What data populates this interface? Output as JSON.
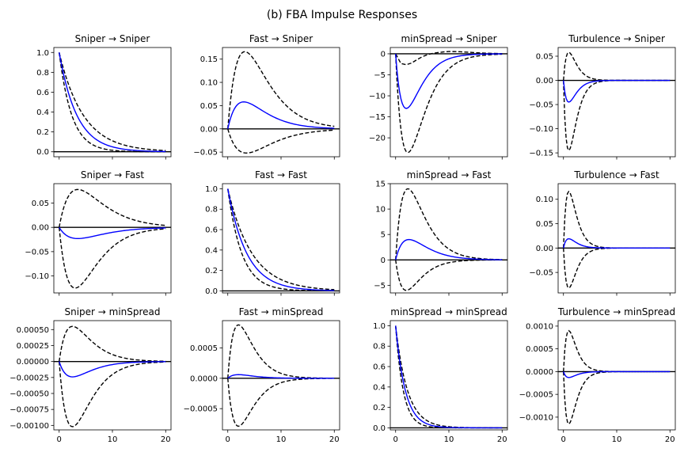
{
  "figure_title": "(b) FBA Impulse Responses",
  "colors": {
    "irf": "#0000ff",
    "band": "#000000",
    "zero": "#000000"
  },
  "chart_data": [
    {
      "type": "line",
      "title": "Sniper → Sniper",
      "xlim": [
        -1,
        21
      ],
      "ylim": [
        -0.05,
        1.05
      ],
      "xticks": [
        0,
        10,
        20
      ],
      "xticklabels": [
        "",
        "",
        ""
      ],
      "yticks": [
        0,
        0.2,
        0.4,
        0.6,
        0.8,
        1.0
      ],
      "yticklabels": [
        "0.0",
        "0.2",
        "0.4",
        "0.6",
        "0.8",
        "1.0"
      ],
      "irf": {
        "shape": "decay",
        "peak": 1.0,
        "rate": 0.3
      },
      "upper": {
        "shape": "decay",
        "peak": 1.0,
        "rate": 0.22
      },
      "lower": {
        "shape": "decay",
        "peak": 1.0,
        "rate": 0.42
      }
    },
    {
      "type": "line",
      "title": "Fast → Sniper",
      "xlim": [
        -1,
        21
      ],
      "ylim": [
        -0.06,
        0.175
      ],
      "xticks": [
        0,
        10,
        20
      ],
      "xticklabels": [
        "",
        "",
        ""
      ],
      "yticks": [
        -0.05,
        0,
        0.05,
        0.1,
        0.15
      ],
      "yticklabels": [
        "−0.05",
        "0.00",
        "0.05",
        "0.10",
        "0.15"
      ],
      "irf": {
        "shape": "hump",
        "peak": 0.058,
        "tpeak": 3
      },
      "upper": {
        "shape": "hump",
        "peak": 0.166,
        "tpeak": 3.2
      },
      "lower": {
        "shape": "hump",
        "peak": -0.052,
        "tpeak": 3.5
      }
    },
    {
      "type": "line",
      "title": "minSpread → Sniper",
      "xlim": [
        -1,
        21
      ],
      "ylim": [
        -24.5,
        1.5
      ],
      "xticks": [
        0,
        10,
        20
      ],
      "xticklabels": [
        "",
        "",
        ""
      ],
      "yticks": [
        -20,
        -15,
        -10,
        -5,
        0
      ],
      "yticklabels": [
        "−20",
        "−15",
        "−10",
        "−5",
        "0"
      ],
      "irf": {
        "shape": "hump",
        "peak": -13,
        "tpeak": 2
      },
      "upper": {
        "shape": "oscillate",
        "points": [
          [
            0,
            0
          ],
          [
            1,
            -2.3
          ],
          [
            2,
            -2.6
          ],
          [
            3,
            -2.2
          ],
          [
            4,
            -1.4
          ],
          [
            5,
            -0.7
          ],
          [
            6,
            -0.2
          ],
          [
            7,
            0.1
          ],
          [
            8,
            0.3
          ],
          [
            9,
            0.45
          ],
          [
            10,
            0.55
          ],
          [
            12,
            0.5
          ],
          [
            14,
            0.35
          ],
          [
            16,
            0.2
          ],
          [
            18,
            0.1
          ],
          [
            20,
            0.05
          ]
        ]
      },
      "lower": {
        "shape": "hump",
        "peak": -23.5,
        "tpeak": 2.3
      }
    },
    {
      "type": "line",
      "title": "Turbulence → Sniper",
      "xlim": [
        -1,
        21
      ],
      "ylim": [
        -0.158,
        0.068
      ],
      "xticks": [
        0,
        10,
        20
      ],
      "xticklabels": [
        "",
        "",
        ""
      ],
      "yticks": [
        -0.15,
        -0.1,
        -0.05,
        0,
        0.05
      ],
      "yticklabels": [
        "−0.15",
        "−0.10",
        "−0.05",
        "0.00",
        "0.05"
      ],
      "irf": {
        "shape": "hump",
        "peak": -0.045,
        "tpeak": 1
      },
      "upper": {
        "shape": "hump",
        "peak": 0.058,
        "tpeak": 1
      },
      "lower": {
        "shape": "hump",
        "peak": -0.145,
        "tpeak": 1
      }
    },
    {
      "type": "line",
      "title": "Sniper → Fast",
      "xlim": [
        -1,
        21
      ],
      "ylim": [
        -0.135,
        0.09
      ],
      "xticks": [
        0,
        10,
        20
      ],
      "xticklabels": [
        "",
        "",
        ""
      ],
      "yticks": [
        -0.1,
        -0.05,
        0,
        0.05
      ],
      "yticklabels": [
        "−0.10",
        "−0.05",
        "0.00",
        "0.05"
      ],
      "irf": {
        "shape": "hump",
        "peak": -0.023,
        "tpeak": 3.5
      },
      "upper": {
        "shape": "hump",
        "peak": 0.078,
        "tpeak": 3.5
      },
      "lower": {
        "shape": "hump",
        "peak": -0.125,
        "tpeak": 3
      }
    },
    {
      "type": "line",
      "title": "Fast → Fast",
      "xlim": [
        -1,
        21
      ],
      "ylim": [
        -0.02,
        1.05
      ],
      "xticks": [
        0,
        10,
        20
      ],
      "xticklabels": [
        "",
        "",
        ""
      ],
      "yticks": [
        0,
        0.2,
        0.4,
        0.6,
        0.8,
        1.0
      ],
      "yticklabels": [
        "0.0",
        "0.2",
        "0.4",
        "0.6",
        "0.8",
        "1.0"
      ],
      "irf": {
        "shape": "decay",
        "peak": 1.0,
        "rate": 0.28
      },
      "upper": {
        "shape": "decay",
        "peak": 1.0,
        "rate": 0.22
      },
      "lower": {
        "shape": "decay",
        "peak": 1.0,
        "rate": 0.38
      }
    },
    {
      "type": "line",
      "title": "minSpread → Fast",
      "xlim": [
        -1,
        21
      ],
      "ylim": [
        -6.5,
        15
      ],
      "xticks": [
        0,
        10,
        20
      ],
      "xticklabels": [
        "",
        "",
        ""
      ],
      "yticks": [
        -5,
        0,
        5,
        10,
        15
      ],
      "yticklabels": [
        "−5",
        "0",
        "5",
        "10",
        "15"
      ],
      "irf": {
        "shape": "hump",
        "peak": 4,
        "tpeak": 2.5
      },
      "upper": {
        "shape": "hump",
        "peak": 14,
        "tpeak": 2.3
      },
      "lower": {
        "shape": "hump",
        "peak": -6,
        "tpeak": 2
      }
    },
    {
      "type": "line",
      "title": "Turbulence → Fast",
      "xlim": [
        -1,
        21
      ],
      "ylim": [
        -0.092,
        0.132
      ],
      "xticks": [
        0,
        10,
        20
      ],
      "xticklabels": [
        "",
        "",
        ""
      ],
      "yticks": [
        -0.05,
        0,
        0.05,
        0.1
      ],
      "yticklabels": [
        "−0.05",
        "0.00",
        "0.05",
        "0.10"
      ],
      "irf": {
        "shape": "hump",
        "peak": 0.019,
        "tpeak": 1
      },
      "upper": {
        "shape": "hump",
        "peak": 0.116,
        "tpeak": 1
      },
      "lower": {
        "shape": "hump",
        "peak": -0.082,
        "tpeak": 1
      }
    },
    {
      "type": "line",
      "title": "Sniper → minSpread",
      "xlim": [
        -1,
        21
      ],
      "ylim": [
        -0.00107,
        0.00064
      ],
      "xticks": [
        0,
        10,
        20
      ],
      "xticklabels": [
        "0",
        "10",
        "20"
      ],
      "yticks": [
        -0.001,
        -0.00075,
        -0.0005,
        -0.00025,
        0,
        0.00025,
        0.0005
      ],
      "yticklabels": [
        "−0.00100",
        "−0.00075",
        "−0.00050",
        "−0.00025",
        "0.00000",
        "0.00025",
        "0.00050"
      ],
      "irf": {
        "shape": "hump",
        "peak": -0.00024,
        "tpeak": 2.5
      },
      "upper": {
        "shape": "hump",
        "peak": 0.00055,
        "tpeak": 2.5
      },
      "lower": {
        "shape": "hump",
        "peak": -0.00102,
        "tpeak": 2.5
      }
    },
    {
      "type": "line",
      "title": "Fast → minSpread",
      "xlim": [
        -1,
        21
      ],
      "ylim": [
        -0.00085,
        0.00095
      ],
      "xticks": [
        0,
        10,
        20
      ],
      "xticklabels": [
        "0",
        "10",
        "20"
      ],
      "yticks": [
        -0.0005,
        0,
        0.0005
      ],
      "yticklabels": [
        "−0.0005",
        "0.0000",
        "0.0005"
      ],
      "irf": {
        "shape": "hump",
        "peak": 6e-05,
        "tpeak": 2
      },
      "upper": {
        "shape": "hump",
        "peak": 0.00088,
        "tpeak": 2
      },
      "lower": {
        "shape": "hump",
        "peak": -0.00079,
        "tpeak": 2
      }
    },
    {
      "type": "line",
      "title": "minSpread → minSpread",
      "xlim": [
        -1,
        21
      ],
      "ylim": [
        -0.02,
        1.05
      ],
      "xticks": [
        0,
        10,
        20
      ],
      "xticklabels": [
        "0",
        "10",
        "20"
      ],
      "yticks": [
        0,
        0.2,
        0.4,
        0.6,
        0.8,
        1.0
      ],
      "yticklabels": [
        "0.0",
        "0.2",
        "0.4",
        "0.6",
        "0.8",
        "1.0"
      ],
      "irf": {
        "shape": "decay",
        "peak": 1.0,
        "rate": 0.55
      },
      "upper": {
        "shape": "decay",
        "peak": 1.0,
        "rate": 0.45
      },
      "lower": {
        "shape": "decay",
        "peak": 1.0,
        "rate": 0.7
      }
    },
    {
      "type": "line",
      "title": "Turbulence → minSpread",
      "xlim": [
        -1,
        21
      ],
      "ylim": [
        -0.00128,
        0.00112
      ],
      "xticks": [
        0,
        10,
        20
      ],
      "xticklabels": [
        "0",
        "10",
        "20"
      ],
      "yticks": [
        -0.001,
        -0.0005,
        0,
        0.0005,
        0.001
      ],
      "yticklabels": [
        "−0.0010",
        "−0.0005",
        "0.0000",
        "0.0005",
        "0.0010"
      ],
      "irf": {
        "shape": "hump",
        "peak": -0.00013,
        "tpeak": 1
      },
      "upper": {
        "shape": "hump",
        "peak": 0.0009,
        "tpeak": 1
      },
      "lower": {
        "shape": "hump",
        "peak": -0.00115,
        "tpeak": 1
      }
    }
  ]
}
